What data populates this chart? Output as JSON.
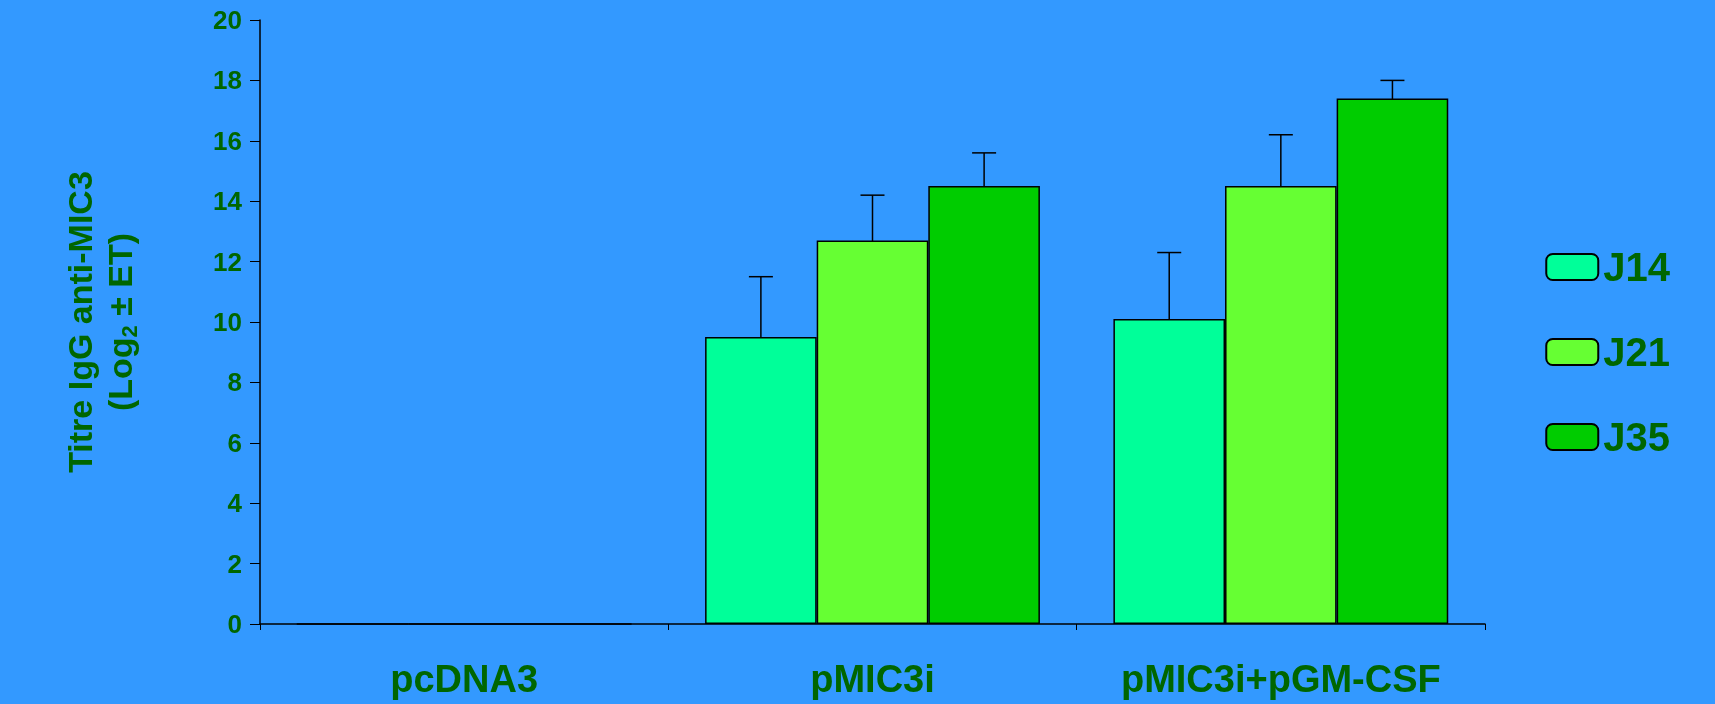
{
  "chart_data": {
    "type": "bar",
    "ylabel": "Titre IgG anti-MIC3\n(Log$_{2}$ ± ET)",
    "categories": [
      "pcDNA3",
      "pMIC3i",
      "pMIC3i+pGM-CSF"
    ],
    "series": [
      {
        "name": "J14",
        "color": "#00ff99",
        "values": [
          0,
          9.5,
          10.1
        ],
        "errors": [
          null,
          2.0,
          2.2
        ]
      },
      {
        "name": "J21",
        "color": "#66ff33",
        "values": [
          0,
          12.7,
          14.5
        ],
        "errors": [
          null,
          1.5,
          1.7
        ]
      },
      {
        "name": "J35",
        "color": "#00cc00",
        "values": [
          0,
          14.5,
          17.4
        ],
        "errors": [
          null,
          1.1,
          0.6
        ]
      }
    ],
    "ylim": [
      0,
      20
    ],
    "yticks": [
      0,
      2,
      4,
      6,
      8,
      10,
      12,
      14,
      16,
      18,
      20
    ],
    "grid": false,
    "legend": "right"
  }
}
